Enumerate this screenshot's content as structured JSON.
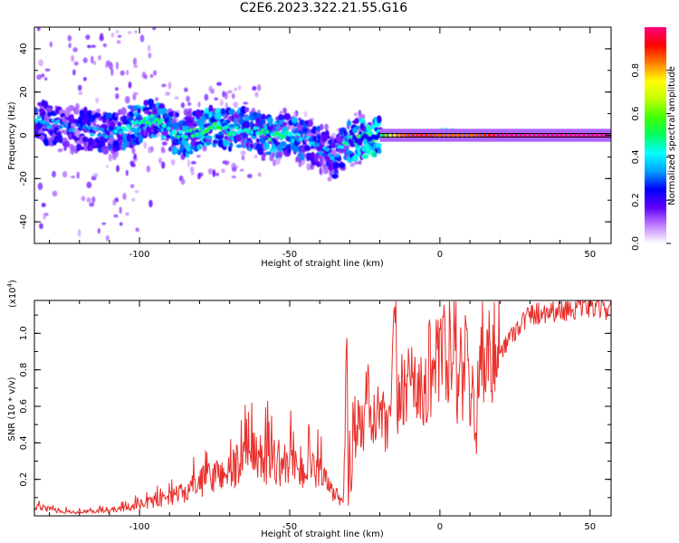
{
  "title": "C2E6.2023.322.21.55.G16",
  "chart_data": [
    {
      "type": "heatmap",
      "xlabel": "Height of straight line (km)",
      "ylabel": "Frequency (Hz)",
      "xlim": [
        -135,
        57
      ],
      "ylim": [
        -50,
        50
      ],
      "xticks": [
        -100,
        -50,
        0,
        50
      ],
      "xtick_labels": [
        "-100",
        "-50",
        "0",
        "50"
      ],
      "yticks": [
        -40,
        -20,
        0,
        20,
        40
      ],
      "ytick_labels": [
        "-40",
        "-20",
        "0",
        "20",
        "40"
      ],
      "colorbar": {
        "label": "Normalized spectral amplitude",
        "range": [
          0,
          1
        ],
        "ticks": [
          0.0,
          0.2,
          0.4,
          0.6,
          0.8
        ],
        "tick_labels": [
          "0.0",
          "0.2",
          "0.4",
          "0.6",
          "0.8"
        ],
        "colors": [
          "#ffffff",
          "#c080ff",
          "#6000ff",
          "#0000ff",
          "#00a0ff",
          "#00ffff",
          "#00ff60",
          "#40ff00",
          "#c0ff00",
          "#ffff00",
          "#ff8000",
          "#ff0000",
          "#ff0080"
        ]
      },
      "ridge": {
        "x": [
          -135,
          -120,
          -110,
          -100,
          -95,
          -90,
          -85,
          -80,
          -75,
          -70,
          -65,
          -60,
          -55,
          -50,
          -45,
          -40,
          -35,
          -32,
          -30,
          -28,
          -25,
          -20,
          -15,
          -10,
          -5,
          0,
          5,
          10,
          15,
          20,
          30,
          40,
          57
        ],
        "y": [
          7,
          3,
          1,
          6,
          8,
          2,
          0,
          2,
          4,
          2,
          3,
          1,
          -1,
          0,
          -2,
          -6,
          -10,
          -4,
          -2,
          -2,
          -1,
          0,
          0,
          0,
          0,
          1,
          1,
          1,
          0,
          0,
          0,
          0,
          0
        ],
        "peak_amplitude": [
          0.3,
          0.25,
          0.3,
          0.4,
          0.45,
          0.35,
          0.4,
          0.45,
          0.45,
          0.4,
          0.35,
          0.4,
          0.4,
          0.4,
          0.3,
          0.3,
          0.3,
          0.35,
          0.4,
          0.45,
          0.45,
          0.5,
          0.8,
          0.9,
          0.9,
          0.85,
          0.85,
          0.85,
          0.9,
          1.0,
          1.0,
          1.0,
          1.0
        ]
      }
    },
    {
      "type": "line",
      "xlabel": "Height of straight line (km)",
      "ylabel": "SNR (10 * v/v)",
      "y_scale_label": "(x10",
      "y_scale_exponent": "4",
      "y_scale_close": ")",
      "xlim": [
        -135,
        57
      ],
      "ylim": [
        0,
        11800
      ],
      "xticks": [
        -100,
        -50,
        0,
        50
      ],
      "xtick_labels": [
        "-100",
        "-50",
        "0",
        "50"
      ],
      "yticks": [
        2000,
        4000,
        6000,
        8000,
        10000
      ],
      "ytick_labels": [
        "0.2",
        "0.4",
        "0.6",
        "0.8",
        "1.0"
      ],
      "series": [
        {
          "color": "#e8302c",
          "x": [
            -135,
            -128,
            -122,
            -115,
            -110,
            -105,
            -100,
            -95,
            -90,
            -85,
            -80,
            -75,
            -70,
            -65,
            -62,
            -58,
            -55,
            -52,
            -50,
            -47,
            -45,
            -42,
            -40,
            -38,
            -36,
            -34,
            -32,
            -31,
            -30.5,
            -30,
            -29.5,
            -29,
            -28,
            -27,
            -26,
            -25,
            -24,
            -22,
            -20,
            -18,
            -16,
            -15,
            -14,
            -13,
            -12,
            -10,
            -8,
            -6,
            -4,
            -2,
            0,
            1,
            2,
            3,
            4,
            5,
            6,
            7,
            8,
            9,
            10,
            11,
            12,
            13,
            14,
            15,
            17,
            20,
            23,
            26,
            30,
            35,
            40,
            45,
            50,
            55,
            57
          ],
          "y": [
            500,
            300,
            200,
            250,
            300,
            400,
            600,
            800,
            1000,
            1300,
            1800,
            2200,
            2500,
            3000,
            3200,
            3100,
            3000,
            2800,
            3000,
            2600,
            2400,
            2400,
            2200,
            1800,
            1400,
            1000,
            900,
            8200,
            800,
            3000,
            500,
            5300,
            4800,
            6200,
            4500,
            5600,
            6500,
            5000,
            5800,
            4500,
            6000,
            11200,
            5500,
            6800,
            7400,
            7500,
            8000,
            6200,
            7600,
            9000,
            7600,
            10300,
            6800,
            9400,
            7000,
            11000,
            6800,
            8800,
            7400,
            10200,
            5500,
            9000,
            3500,
            8800,
            9500,
            8300,
            8600,
            9000,
            9700,
            10400,
            11000,
            11200,
            11300,
            11400,
            11500,
            11400,
            11400
          ]
        }
      ]
    }
  ]
}
